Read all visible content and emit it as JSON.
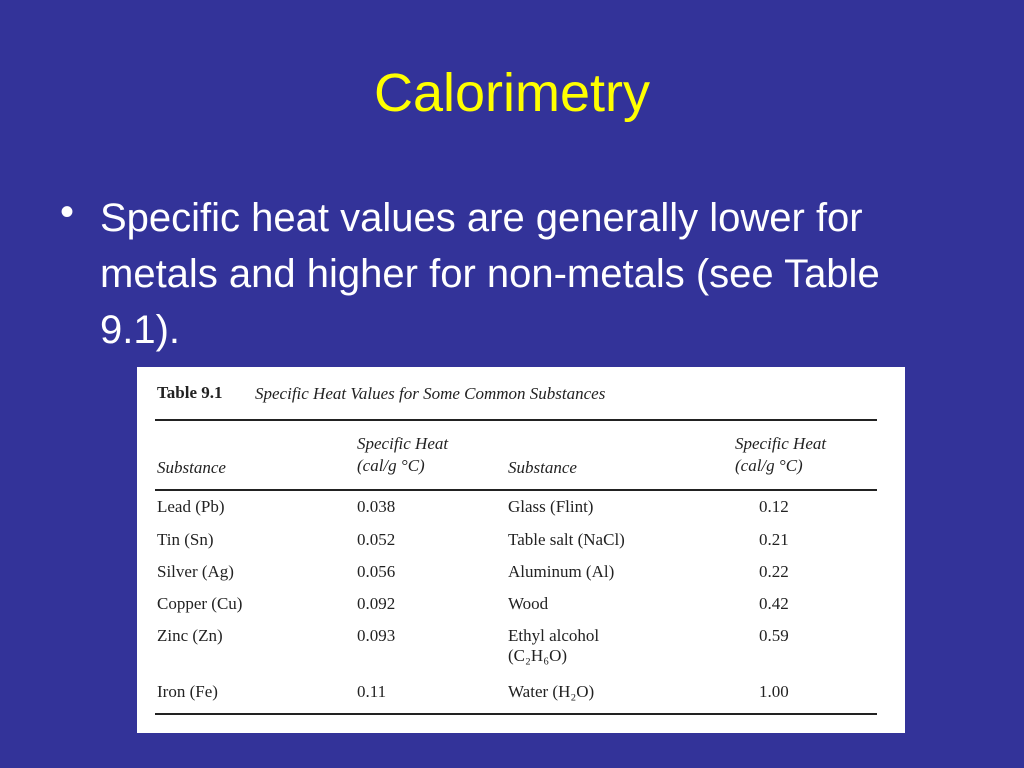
{
  "slide": {
    "title": "Calorimetry",
    "bullets": [
      "Specific heat values are generally lower for metals and higher for non-metals (see Table 9.1)."
    ]
  },
  "table": {
    "label": "Table 9.1",
    "caption": "Specific Heat Values for Some Common Substances",
    "columns": [
      {
        "name": "Substance"
      },
      {
        "name": "Specific Heat",
        "unit": "(cal/g °C)"
      },
      {
        "name": "Substance"
      },
      {
        "name": "Specific Heat",
        "unit": "(cal/g °C)"
      }
    ],
    "rows": [
      [
        "Lead (Pb)",
        "0.038",
        "Glass (Flint)",
        "0.12"
      ],
      [
        "Tin (Sn)",
        "0.052",
        "Table salt (NaCl)",
        "0.21"
      ],
      [
        "Silver (Ag)",
        "0.056",
        "Aluminum (Al)",
        "0.22"
      ],
      [
        "Copper (Cu)",
        "0.092",
        "Wood",
        "0.42"
      ],
      [
        "Zinc (Zn)",
        "0.093",
        "Ethyl alcohol\n(C₂H₆O)",
        "0.59"
      ],
      [
        "Iron (Fe)",
        "0.11",
        "Water (H₂O)",
        "1.00"
      ]
    ]
  }
}
